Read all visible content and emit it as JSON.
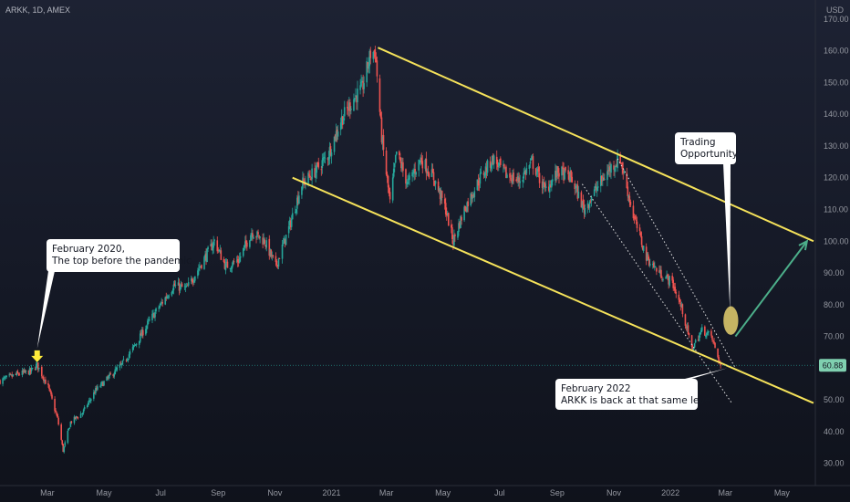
{
  "header": {
    "symbol_line": "ARKK, 1D, AMEX",
    "currency": "USD"
  },
  "chart_data": {
    "type": "candlestick",
    "symbol": "ARKK",
    "interval": "1D",
    "exchange": "AMEX",
    "currency": "USD",
    "title": "",
    "xlabel": "",
    "ylabel": "",
    "x_ticks": [
      {
        "label": "Mar",
        "date": "2020-03-01"
      },
      {
        "label": "May",
        "date": "2020-05-01"
      },
      {
        "label": "Jul",
        "date": "2020-07-01"
      },
      {
        "label": "Sep",
        "date": "2020-09-01"
      },
      {
        "label": "Nov",
        "date": "2020-11-01"
      },
      {
        "label": "2021",
        "date": "2021-01-01"
      },
      {
        "label": "Mar",
        "date": "2021-03-01"
      },
      {
        "label": "May",
        "date": "2021-05-01"
      },
      {
        "label": "Jul",
        "date": "2021-07-01"
      },
      {
        "label": "Sep",
        "date": "2021-09-01"
      },
      {
        "label": "Nov",
        "date": "2021-11-01"
      },
      {
        "label": "2022",
        "date": "2022-01-01"
      },
      {
        "label": "Mar",
        "date": "2022-03-01"
      },
      {
        "label": "May",
        "date": "2022-05-01"
      }
    ],
    "y_ticks": [
      "30.00",
      "40.00",
      "50.00",
      "60.00",
      "70.00",
      "80.00",
      "90.00",
      "100.00",
      "110.00",
      "120.00",
      "130.00",
      "140.00",
      "150.00",
      "160.00",
      "170.00"
    ],
    "ylim": [
      23,
      176
    ],
    "xlim": [
      "2020-01-10",
      "2022-06-06"
    ],
    "last_price": "60.88",
    "last_price_value": 60.88,
    "colors": {
      "up": "#26a69a",
      "down": "#ef5350",
      "trendline": "#f5e25a",
      "arrow": "#4caf8a",
      "highlight": "#d9c56a",
      "price_tag": "#7fd0b0"
    },
    "price_path": [
      [
        "2020-01-10",
        56
      ],
      [
        "2020-01-28",
        58
      ],
      [
        "2020-02-12",
        59
      ],
      [
        "2020-02-19",
        61
      ],
      [
        "2020-03-02",
        54
      ],
      [
        "2020-03-12",
        44
      ],
      [
        "2020-03-18",
        34
      ],
      [
        "2020-03-26",
        43
      ],
      [
        "2020-04-08",
        46
      ],
      [
        "2020-04-22",
        53
      ],
      [
        "2020-05-06",
        57
      ],
      [
        "2020-05-20",
        61
      ],
      [
        "2020-06-03",
        67
      ],
      [
        "2020-06-17",
        74
      ],
      [
        "2020-07-01",
        80
      ],
      [
        "2020-07-15",
        86
      ],
      [
        "2020-07-29",
        85
      ],
      [
        "2020-08-12",
        92
      ],
      [
        "2020-08-28",
        100
      ],
      [
        "2020-09-09",
        92
      ],
      [
        "2020-09-23",
        94
      ],
      [
        "2020-10-07",
        103
      ],
      [
        "2020-10-21",
        100
      ],
      [
        "2020-11-02",
        92
      ],
      [
        "2020-11-16",
        104
      ],
      [
        "2020-11-30",
        118
      ],
      [
        "2020-12-14",
        122
      ],
      [
        "2020-12-28",
        127
      ],
      [
        "2021-01-11",
        138
      ],
      [
        "2021-01-25",
        145
      ],
      [
        "2021-02-03",
        148
      ],
      [
        "2021-02-12",
        159
      ],
      [
        "2021-02-17",
        160
      ],
      [
        "2021-02-24",
        133
      ],
      [
        "2021-03-05",
        112
      ],
      [
        "2021-03-12",
        128
      ],
      [
        "2021-03-24",
        118
      ],
      [
        "2021-04-07",
        126
      ],
      [
        "2021-04-21",
        120
      ],
      [
        "2021-05-04",
        110
      ],
      [
        "2021-05-12",
        100
      ],
      [
        "2021-05-24",
        110
      ],
      [
        "2021-06-10",
        120
      ],
      [
        "2021-06-24",
        126
      ],
      [
        "2021-07-08",
        121
      ],
      [
        "2021-07-22",
        119
      ],
      [
        "2021-08-05",
        125
      ],
      [
        "2021-08-19",
        116
      ],
      [
        "2021-09-02",
        122
      ],
      [
        "2021-09-16",
        120
      ],
      [
        "2021-09-30",
        110
      ],
      [
        "2021-10-14",
        117
      ],
      [
        "2021-10-28",
        123
      ],
      [
        "2021-11-08",
        126
      ],
      [
        "2021-11-22",
        108
      ],
      [
        "2021-12-06",
        95
      ],
      [
        "2021-12-20",
        90
      ],
      [
        "2022-01-03",
        87
      ],
      [
        "2022-01-14",
        78
      ],
      [
        "2022-01-24",
        66
      ],
      [
        "2022-02-04",
        72
      ],
      [
        "2022-02-14",
        70
      ],
      [
        "2022-02-24",
        60.88
      ]
    ],
    "lines": [
      {
        "name": "upper-channel-line",
        "style": "solid",
        "from": [
          "2021-02-20",
          161
        ],
        "to": [
          "2022-06-04",
          100
        ]
      },
      {
        "name": "lower-channel-line",
        "style": "solid",
        "from": [
          "2020-11-20",
          120
        ],
        "to": [
          "2022-06-04",
          49
        ]
      },
      {
        "name": "dotted-line-outer",
        "style": "dotted",
        "from": [
          "2021-11-05",
          126
        ],
        "to": [
          "2022-03-12",
          60
        ]
      },
      {
        "name": "dotted-line-inner",
        "style": "dotted",
        "from": [
          "2021-09-28",
          118
        ],
        "to": [
          "2022-03-08",
          49
        ]
      },
      {
        "name": "pandemic-level-line",
        "style": "dotted",
        "from": [
          "2020-01-10",
          60.88
        ],
        "to": [
          "2022-06-06",
          60.88
        ]
      }
    ],
    "annotations": [
      {
        "name": "callout-feb-2020",
        "lines": [
          "February 2020,",
          "The top before the pandemic"
        ],
        "points_to": [
          "2020-02-19",
          61
        ]
      },
      {
        "name": "callout-trading-opportunity",
        "lines": [
          "Trading",
          "Opportunity"
        ],
        "points_to": [
          "2022-03-09",
          76
        ]
      },
      {
        "name": "callout-feb-2022",
        "lines": [
          "February 2022",
          "ARKK is back at that same level"
        ],
        "points_to": [
          "2022-03-03",
          60
        ]
      }
    ],
    "arrow": {
      "name": "projection-arrow",
      "from": [
        "2022-03-12",
        70
      ],
      "to": [
        "2022-05-28",
        100
      ]
    },
    "highlight_ellipse": {
      "name": "opportunity-ellipse",
      "center": [
        "2022-03-07",
        75
      ],
      "rx_days": 8,
      "ry_value": 4.5
    },
    "marker": {
      "name": "feb-2020-top-marker",
      "at": [
        "2020-02-19",
        61
      ]
    },
    "grid": false,
    "legend": "none"
  }
}
